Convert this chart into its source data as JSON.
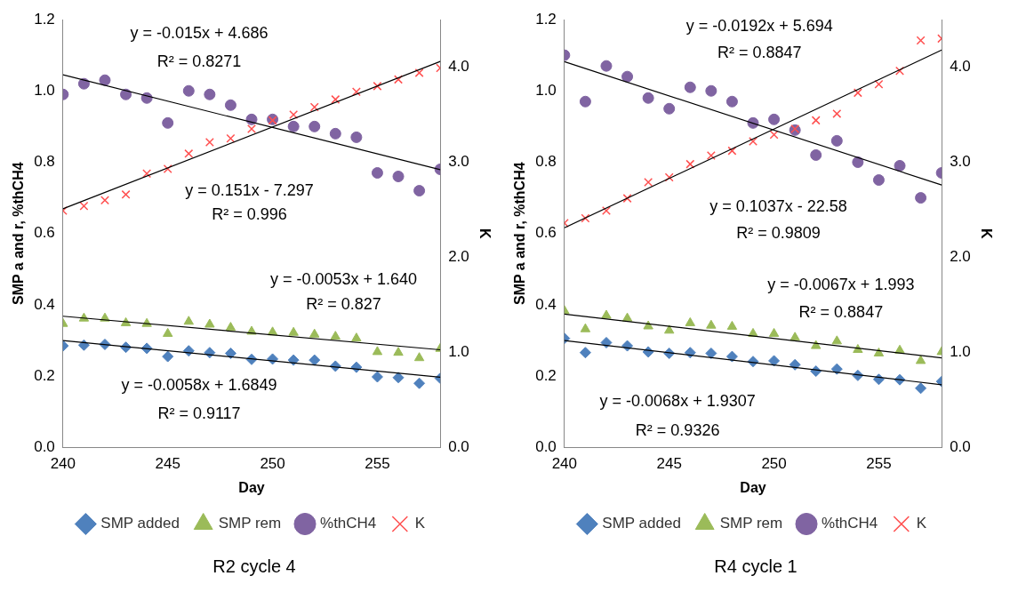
{
  "chart_data": [
    {
      "type": "scatter",
      "title": "R2 cycle 4",
      "xlabel": "Day",
      "ylabel": "SMP a and r, %thCH4",
      "y2label": "K",
      "x": [
        240,
        241,
        242,
        243,
        244,
        245,
        246,
        247,
        248,
        249,
        250,
        251,
        252,
        253,
        254,
        255,
        256,
        257,
        258
      ],
      "xlim": [
        240,
        258
      ],
      "xticks": [
        240,
        245,
        250,
        255
      ],
      "ylim": [
        0,
        1.2
      ],
      "yticks": [
        {
          "value": 0,
          "label": "0.0"
        },
        {
          "value": 0.2,
          "label": "0.2"
        },
        {
          "value": 0.4,
          "label": "0.4"
        },
        {
          "value": 0.6,
          "label": "0.6"
        },
        {
          "value": 0.8,
          "label": "0.8"
        },
        {
          "value": 1,
          "label": "1.0"
        },
        {
          "value": 1.2,
          "label": "1.2"
        }
      ],
      "y2lim": [
        0,
        4.5
      ],
      "y2ticks": [
        {
          "value": 0,
          "label": "0.0"
        },
        {
          "value": 1,
          "label": "1.0"
        },
        {
          "value": 2,
          "label": "2.0"
        },
        {
          "value": 3,
          "label": "3.0"
        },
        {
          "value": 4,
          "label": "4.0"
        }
      ],
      "grid": false,
      "legend": "bottom",
      "series": [
        {
          "name": "SMP added",
          "color": "#4f81bd",
          "marker": "diamond",
          "values": [
            0.285,
            0.287,
            0.289,
            0.281,
            0.278,
            0.255,
            0.271,
            0.266,
            0.264,
            0.247,
            0.248,
            0.245,
            0.245,
            0.228,
            0.225,
            0.198,
            0.196,
            0.18,
            0.194
          ]
        },
        {
          "name": "SMP rem",
          "color": "#9bbb59",
          "marker": "triangle",
          "values": [
            0.347,
            0.362,
            0.362,
            0.349,
            0.347,
            0.319,
            0.353,
            0.345,
            0.336,
            0.325,
            0.323,
            0.322,
            0.317,
            0.311,
            0.306,
            0.268,
            0.266,
            0.251,
            0.277
          ]
        },
        {
          "name": "%thCH4",
          "color": "#8064a2",
          "marker": "circle",
          "values": [
            0.99,
            1.02,
            1.03,
            0.99,
            0.98,
            0.91,
            1.0,
            0.99,
            0.96,
            0.92,
            0.92,
            0.9,
            0.9,
            0.88,
            0.87,
            0.77,
            0.76,
            0.72,
            0.78
          ]
        },
        {
          "name": "K",
          "color": "#ff5050",
          "marker": "cross",
          "axis": "y2",
          "values": [
            2.49,
            2.54,
            2.6,
            2.66,
            2.88,
            2.93,
            3.09,
            3.21,
            3.25,
            3.35,
            3.44,
            3.5,
            3.58,
            3.66,
            3.74,
            3.8,
            3.87,
            3.94,
            3.99
          ]
        },
        {
          "type": "line",
          "color": "#000000",
          "marker": "none",
          "values": [
            0.3,
            null,
            null,
            null,
            null,
            null,
            null,
            null,
            null,
            null,
            null,
            null,
            null,
            null,
            null,
            null,
            null,
            null,
            0.197
          ]
        },
        {
          "type": "line",
          "color": "#000000",
          "marker": "none",
          "values": [
            0.368,
            null,
            null,
            null,
            null,
            null,
            null,
            null,
            null,
            null,
            null,
            null,
            null,
            null,
            null,
            null,
            null,
            null,
            0.274
          ]
        },
        {
          "type": "line",
          "color": "#000000",
          "marker": "none",
          "values": [
            1.045,
            null,
            null,
            null,
            null,
            null,
            null,
            null,
            null,
            null,
            null,
            null,
            null,
            null,
            null,
            null,
            null,
            null,
            0.779
          ]
        },
        {
          "type": "line",
          "color": "#000000",
          "marker": "none",
          "axis": "y2",
          "values": [
            2.51,
            null,
            null,
            null,
            null,
            null,
            null,
            null,
            null,
            null,
            null,
            null,
            null,
            null,
            null,
            null,
            null,
            null,
            4.06
          ]
        }
      ],
      "annotations": [
        "y = -0.015x + 4.686",
        "R² = 0.8271",
        "y = 0.151x - 7.297",
        "R² = 0.996",
        "y = -0.0053x + 1.640",
        "R² = 0.827",
        "y = -0.0058x + 1.6849",
        "R² = 0.9117"
      ]
    },
    {
      "type": "scatter",
      "title": "R4 cycle 1",
      "xlabel": "Day",
      "ylabel": "SMP a and r, %thCH4",
      "y2label": "K",
      "x": [
        240,
        241,
        242,
        243,
        244,
        245,
        246,
        247,
        248,
        249,
        250,
        251,
        252,
        253,
        254,
        255,
        256,
        257,
        258
      ],
      "xlim": [
        240,
        258
      ],
      "xticks": [
        240,
        245,
        250,
        255
      ],
      "ylim": [
        0,
        1.2
      ],
      "yticks": [
        {
          "value": 0,
          "label": "0.0"
        },
        {
          "value": 0.2,
          "label": "0.2"
        },
        {
          "value": 0.4,
          "label": "0.4"
        },
        {
          "value": 0.6,
          "label": "0.6"
        },
        {
          "value": 0.8,
          "label": "0.8"
        },
        {
          "value": 1,
          "label": "1.0"
        },
        {
          "value": 1.2,
          "label": "1.2"
        }
      ],
      "y2lim": [
        0,
        4.5
      ],
      "y2ticks": [
        {
          "value": 0,
          "label": "0.0"
        },
        {
          "value": 1,
          "label": "1.0"
        },
        {
          "value": 2,
          "label": "2.0"
        },
        {
          "value": 3,
          "label": "3.0"
        },
        {
          "value": 4,
          "label": "4.0"
        }
      ],
      "grid": false,
      "legend": "bottom",
      "series": [
        {
          "name": "SMP added",
          "color": "#4f81bd",
          "marker": "diamond",
          "values": [
            0.306,
            0.266,
            0.294,
            0.285,
            0.268,
            0.264,
            0.266,
            0.264,
            0.255,
            0.241,
            0.243,
            0.232,
            0.214,
            0.22,
            0.202,
            0.191,
            0.19,
            0.166,
            0.185
          ]
        },
        {
          "name": "SMP rem",
          "color": "#9bbb59",
          "marker": "triangle",
          "values": [
            0.383,
            0.332,
            0.37,
            0.362,
            0.34,
            0.328,
            0.349,
            0.342,
            0.339,
            0.319,
            0.319,
            0.308,
            0.285,
            0.298,
            0.274,
            0.264,
            0.272,
            0.243,
            0.268
          ]
        },
        {
          "name": "%thCH4",
          "color": "#8064a2",
          "marker": "circle",
          "values": [
            1.1,
            0.97,
            1.07,
            1.04,
            0.98,
            0.95,
            1.01,
            1.0,
            0.97,
            0.91,
            0.92,
            0.89,
            0.82,
            0.86,
            0.8,
            0.75,
            0.79,
            0.7,
            0.77
          ]
        },
        {
          "name": "K",
          "color": "#ff5050",
          "marker": "cross",
          "axis": "y2",
          "values": [
            2.36,
            2.41,
            2.49,
            2.62,
            2.79,
            2.84,
            2.98,
            3.07,
            3.12,
            3.22,
            3.29,
            3.35,
            3.44,
            3.51,
            3.73,
            3.82,
            3.96,
            4.28,
            4.3
          ]
        },
        {
          "type": "line",
          "color": "#000000",
          "marker": "none",
          "values": [
            0.3,
            null,
            null,
            null,
            null,
            null,
            null,
            null,
            null,
            null,
            null,
            null,
            null,
            null,
            null,
            null,
            null,
            null,
            0.176
          ]
        },
        {
          "type": "line",
          "color": "#000000",
          "marker": "none",
          "values": [
            0.374,
            null,
            null,
            null,
            null,
            null,
            null,
            null,
            null,
            null,
            null,
            null,
            null,
            null,
            null,
            null,
            null,
            null,
            0.251
          ]
        },
        {
          "type": "line",
          "color": "#000000",
          "marker": "none",
          "values": [
            1.082,
            null,
            null,
            null,
            null,
            null,
            null,
            null,
            null,
            null,
            null,
            null,
            null,
            null,
            null,
            null,
            null,
            null,
            0.736
          ]
        },
        {
          "type": "line",
          "color": "#000000",
          "marker": "none",
          "axis": "y2",
          "values": [
            2.31,
            null,
            null,
            null,
            null,
            null,
            null,
            null,
            null,
            null,
            null,
            null,
            null,
            null,
            null,
            null,
            null,
            null,
            4.18
          ]
        }
      ],
      "annotations": [
        "y = -0.0192x + 5.694",
        "R² = 0.8847",
        "y = 0.1037x - 22.58",
        "R² = 0.9809",
        "y = -0.0067x + 1.993",
        "R² = 0.8847",
        "y = -0.0068x + 1.9307",
        "R² = 0.9326"
      ]
    }
  ]
}
